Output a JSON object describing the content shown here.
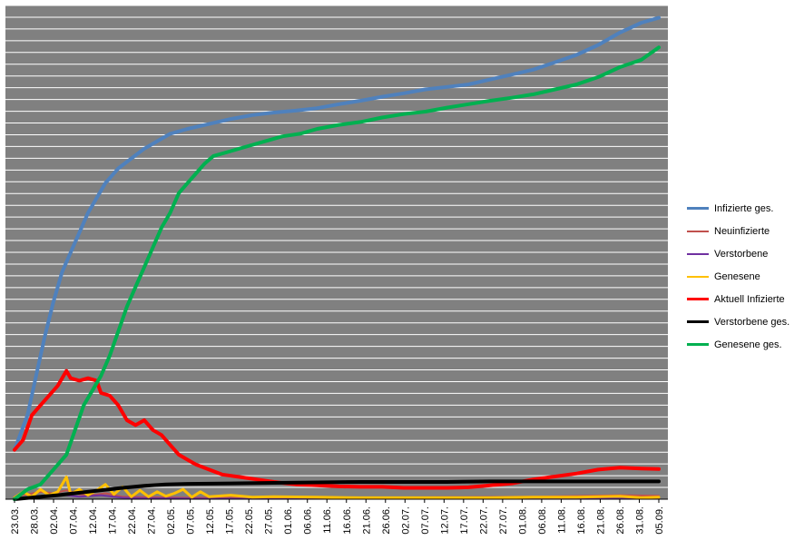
{
  "chart_data": {
    "type": "line",
    "title": "",
    "xlabel": "",
    "ylabel": "",
    "grid": true,
    "legend_position": "right",
    "plot_background": "#808080",
    "gridline_color": "#ffffff",
    "y_axis_labels_shown": false,
    "ylim": [
      0,
      100
    ],
    "x_tick_labels": [
      "23.03.",
      "28.03.",
      "02.04.",
      "07.04.",
      "12.04.",
      "17.04.",
      "22.04.",
      "27.04.",
      "02.05.",
      "07.05.",
      "12.05.",
      "17.05.",
      "22.05.",
      "27.05.",
      "01.06.",
      "06.06.",
      "11.06.",
      "16.06.",
      "21.06.",
      "26.06.",
      "02.07.",
      "07.07.",
      "12.07.",
      "17.07.",
      "22.07.",
      "27.07.",
      "01.08.",
      "06.08.",
      "11.08.",
      "16.08.",
      "21.08.",
      "26.08.",
      "31.08.",
      "05.09."
    ],
    "series": [
      {
        "name": "Infizierte ges.",
        "color": "#4f81bd",
        "width": 4,
        "points": [
          [
            0,
            10
          ],
          [
            3,
            17
          ],
          [
            5,
            25
          ],
          [
            7,
            33
          ],
          [
            9,
            40
          ],
          [
            11,
            46
          ],
          [
            13,
            50
          ],
          [
            15,
            54
          ],
          [
            17,
            58
          ],
          [
            19,
            61
          ],
          [
            21,
            64
          ],
          [
            24,
            67
          ],
          [
            27,
            69
          ],
          [
            30,
            71
          ],
          [
            33,
            72.5
          ],
          [
            36,
            74
          ],
          [
            40,
            75
          ],
          [
            45,
            76
          ],
          [
            50,
            77
          ],
          [
            55,
            77.8
          ],
          [
            60,
            78.3
          ],
          [
            65,
            78.7
          ],
          [
            70,
            79.2
          ],
          [
            75,
            80
          ],
          [
            80,
            80.7
          ],
          [
            85,
            81.5
          ],
          [
            90,
            82.2
          ],
          [
            95,
            83
          ],
          [
            100,
            83.5
          ],
          [
            105,
            84
          ],
          [
            110,
            85
          ],
          [
            115,
            86
          ],
          [
            120,
            87
          ],
          [
            125,
            88.5
          ],
          [
            130,
            90
          ],
          [
            135,
            92
          ],
          [
            140,
            94.5
          ],
          [
            145,
            96.5
          ],
          [
            149,
            97.5
          ]
        ]
      },
      {
        "name": "Neuinfizierte",
        "color": "#c0504d",
        "width": 2,
        "points": [
          [
            0,
            0.5
          ],
          [
            3,
            1
          ],
          [
            6,
            1.5
          ],
          [
            9,
            1.2
          ],
          [
            12,
            1.8
          ],
          [
            15,
            1
          ],
          [
            18,
            0.8
          ],
          [
            21,
            1.2
          ],
          [
            25,
            0.5
          ],
          [
            30,
            0.4
          ],
          [
            40,
            0.3
          ],
          [
            60,
            0.3
          ],
          [
            80,
            0.3
          ],
          [
            100,
            0.4
          ],
          [
            120,
            0.5
          ],
          [
            140,
            0.8
          ],
          [
            149,
            0.7
          ]
        ]
      },
      {
        "name": "Verstorbene",
        "color": "#7030a0",
        "width": 2,
        "points": [
          [
            0,
            0
          ],
          [
            5,
            0.5
          ],
          [
            10,
            1
          ],
          [
            15,
            0.5
          ],
          [
            20,
            0.8
          ],
          [
            25,
            0.3
          ],
          [
            30,
            0.2
          ],
          [
            50,
            0.1
          ],
          [
            80,
            0.1
          ],
          [
            110,
            0.1
          ],
          [
            149,
            0.1
          ]
        ]
      },
      {
        "name": "Genesene",
        "color": "#ffc000",
        "width": 3,
        "points": [
          [
            0,
            0.3
          ],
          [
            2,
            1.5
          ],
          [
            4,
            0.5
          ],
          [
            6,
            2
          ],
          [
            8,
            0.8
          ],
          [
            10,
            1.5
          ],
          [
            12,
            4.5
          ],
          [
            13,
            1
          ],
          [
            15,
            2
          ],
          [
            17,
            0.8
          ],
          [
            19,
            1.8
          ],
          [
            21,
            3
          ],
          [
            23,
            1
          ],
          [
            25,
            2.5
          ],
          [
            27,
            0.5
          ],
          [
            29,
            1.8
          ],
          [
            31,
            0.5
          ],
          [
            33,
            1.5
          ],
          [
            35,
            0.6
          ],
          [
            37,
            1.2
          ],
          [
            39,
            2
          ],
          [
            41,
            0.4
          ],
          [
            43,
            1.5
          ],
          [
            45,
            0.5
          ],
          [
            50,
            0.8
          ],
          [
            55,
            0.4
          ],
          [
            60,
            0.5
          ],
          [
            70,
            0.4
          ],
          [
            80,
            0.3
          ],
          [
            90,
            0.3
          ],
          [
            100,
            0.3
          ],
          [
            110,
            0.3
          ],
          [
            120,
            0.4
          ],
          [
            130,
            0.4
          ],
          [
            140,
            0.6
          ],
          [
            145,
            0.3
          ],
          [
            149,
            0.4
          ]
        ]
      },
      {
        "name": "Aktuell Infizierte",
        "color": "#ff0000",
        "width": 4,
        "points": [
          [
            0,
            10
          ],
          [
            2,
            12
          ],
          [
            4,
            17
          ],
          [
            6,
            19
          ],
          [
            8,
            21
          ],
          [
            10,
            23
          ],
          [
            12,
            26
          ],
          [
            13,
            24.5
          ],
          [
            15,
            24
          ],
          [
            17,
            24.5
          ],
          [
            19,
            24
          ],
          [
            20,
            21.5
          ],
          [
            22,
            21
          ],
          [
            24,
            19
          ],
          [
            26,
            16
          ],
          [
            28,
            15
          ],
          [
            30,
            16
          ],
          [
            32,
            14
          ],
          [
            34,
            13
          ],
          [
            36,
            11
          ],
          [
            38,
            9
          ],
          [
            40,
            8
          ],
          [
            42,
            7
          ],
          [
            45,
            6
          ],
          [
            48,
            5
          ],
          [
            52,
            4.5
          ],
          [
            56,
            4
          ],
          [
            60,
            3.5
          ],
          [
            65,
            3
          ],
          [
            70,
            2.8
          ],
          [
            75,
            2.6
          ],
          [
            80,
            2.5
          ],
          [
            85,
            2.5
          ],
          [
            90,
            2.3
          ],
          [
            95,
            2.3
          ],
          [
            100,
            2.3
          ],
          [
            105,
            2.4
          ],
          [
            110,
            2.8
          ],
          [
            115,
            3.2
          ],
          [
            120,
            4
          ],
          [
            125,
            4.6
          ],
          [
            130,
            5.2
          ],
          [
            135,
            6
          ],
          [
            140,
            6.4
          ],
          [
            145,
            6.2
          ],
          [
            149,
            6.1
          ]
        ]
      },
      {
        "name": "Verstorbene ges.",
        "color": "#000000",
        "width": 4,
        "points": [
          [
            0,
            0
          ],
          [
            5,
            0.4
          ],
          [
            10,
            0.8
          ],
          [
            15,
            1.3
          ],
          [
            20,
            1.8
          ],
          [
            25,
            2.3
          ],
          [
            30,
            2.7
          ],
          [
            35,
            3
          ],
          [
            40,
            3.1
          ],
          [
            50,
            3.2
          ],
          [
            60,
            3.3
          ],
          [
            70,
            3.4
          ],
          [
            80,
            3.5
          ],
          [
            90,
            3.5
          ],
          [
            100,
            3.5
          ],
          [
            110,
            3.6
          ],
          [
            120,
            3.6
          ],
          [
            130,
            3.6
          ],
          [
            140,
            3.6
          ],
          [
            149,
            3.6
          ]
        ]
      },
      {
        "name": "Genesene ges.",
        "color": "#00b050",
        "width": 4,
        "points": [
          [
            0,
            0
          ],
          [
            3,
            2
          ],
          [
            6,
            3
          ],
          [
            9,
            6
          ],
          [
            12,
            9
          ],
          [
            14,
            14
          ],
          [
            16,
            19
          ],
          [
            18,
            22
          ],
          [
            20,
            25
          ],
          [
            22,
            29
          ],
          [
            24,
            34
          ],
          [
            26,
            39
          ],
          [
            28,
            43
          ],
          [
            30,
            47
          ],
          [
            32,
            51
          ],
          [
            34,
            55
          ],
          [
            36,
            58
          ],
          [
            38,
            62
          ],
          [
            40,
            64
          ],
          [
            42,
            66
          ],
          [
            44,
            68
          ],
          [
            46,
            69.5
          ],
          [
            50,
            70.5
          ],
          [
            54,
            71.5
          ],
          [
            58,
            72.5
          ],
          [
            62,
            73.5
          ],
          [
            66,
            74
          ],
          [
            70,
            75
          ],
          [
            75,
            75.8
          ],
          [
            80,
            76.4
          ],
          [
            85,
            77.3
          ],
          [
            90,
            78
          ],
          [
            95,
            78.5
          ],
          [
            100,
            79.3
          ],
          [
            105,
            80
          ],
          [
            110,
            80.7
          ],
          [
            115,
            81.3
          ],
          [
            120,
            82
          ],
          [
            125,
            83
          ],
          [
            130,
            84
          ],
          [
            135,
            85.5
          ],
          [
            140,
            87.5
          ],
          [
            145,
            89
          ],
          [
            149,
            91.5
          ]
        ]
      }
    ]
  }
}
